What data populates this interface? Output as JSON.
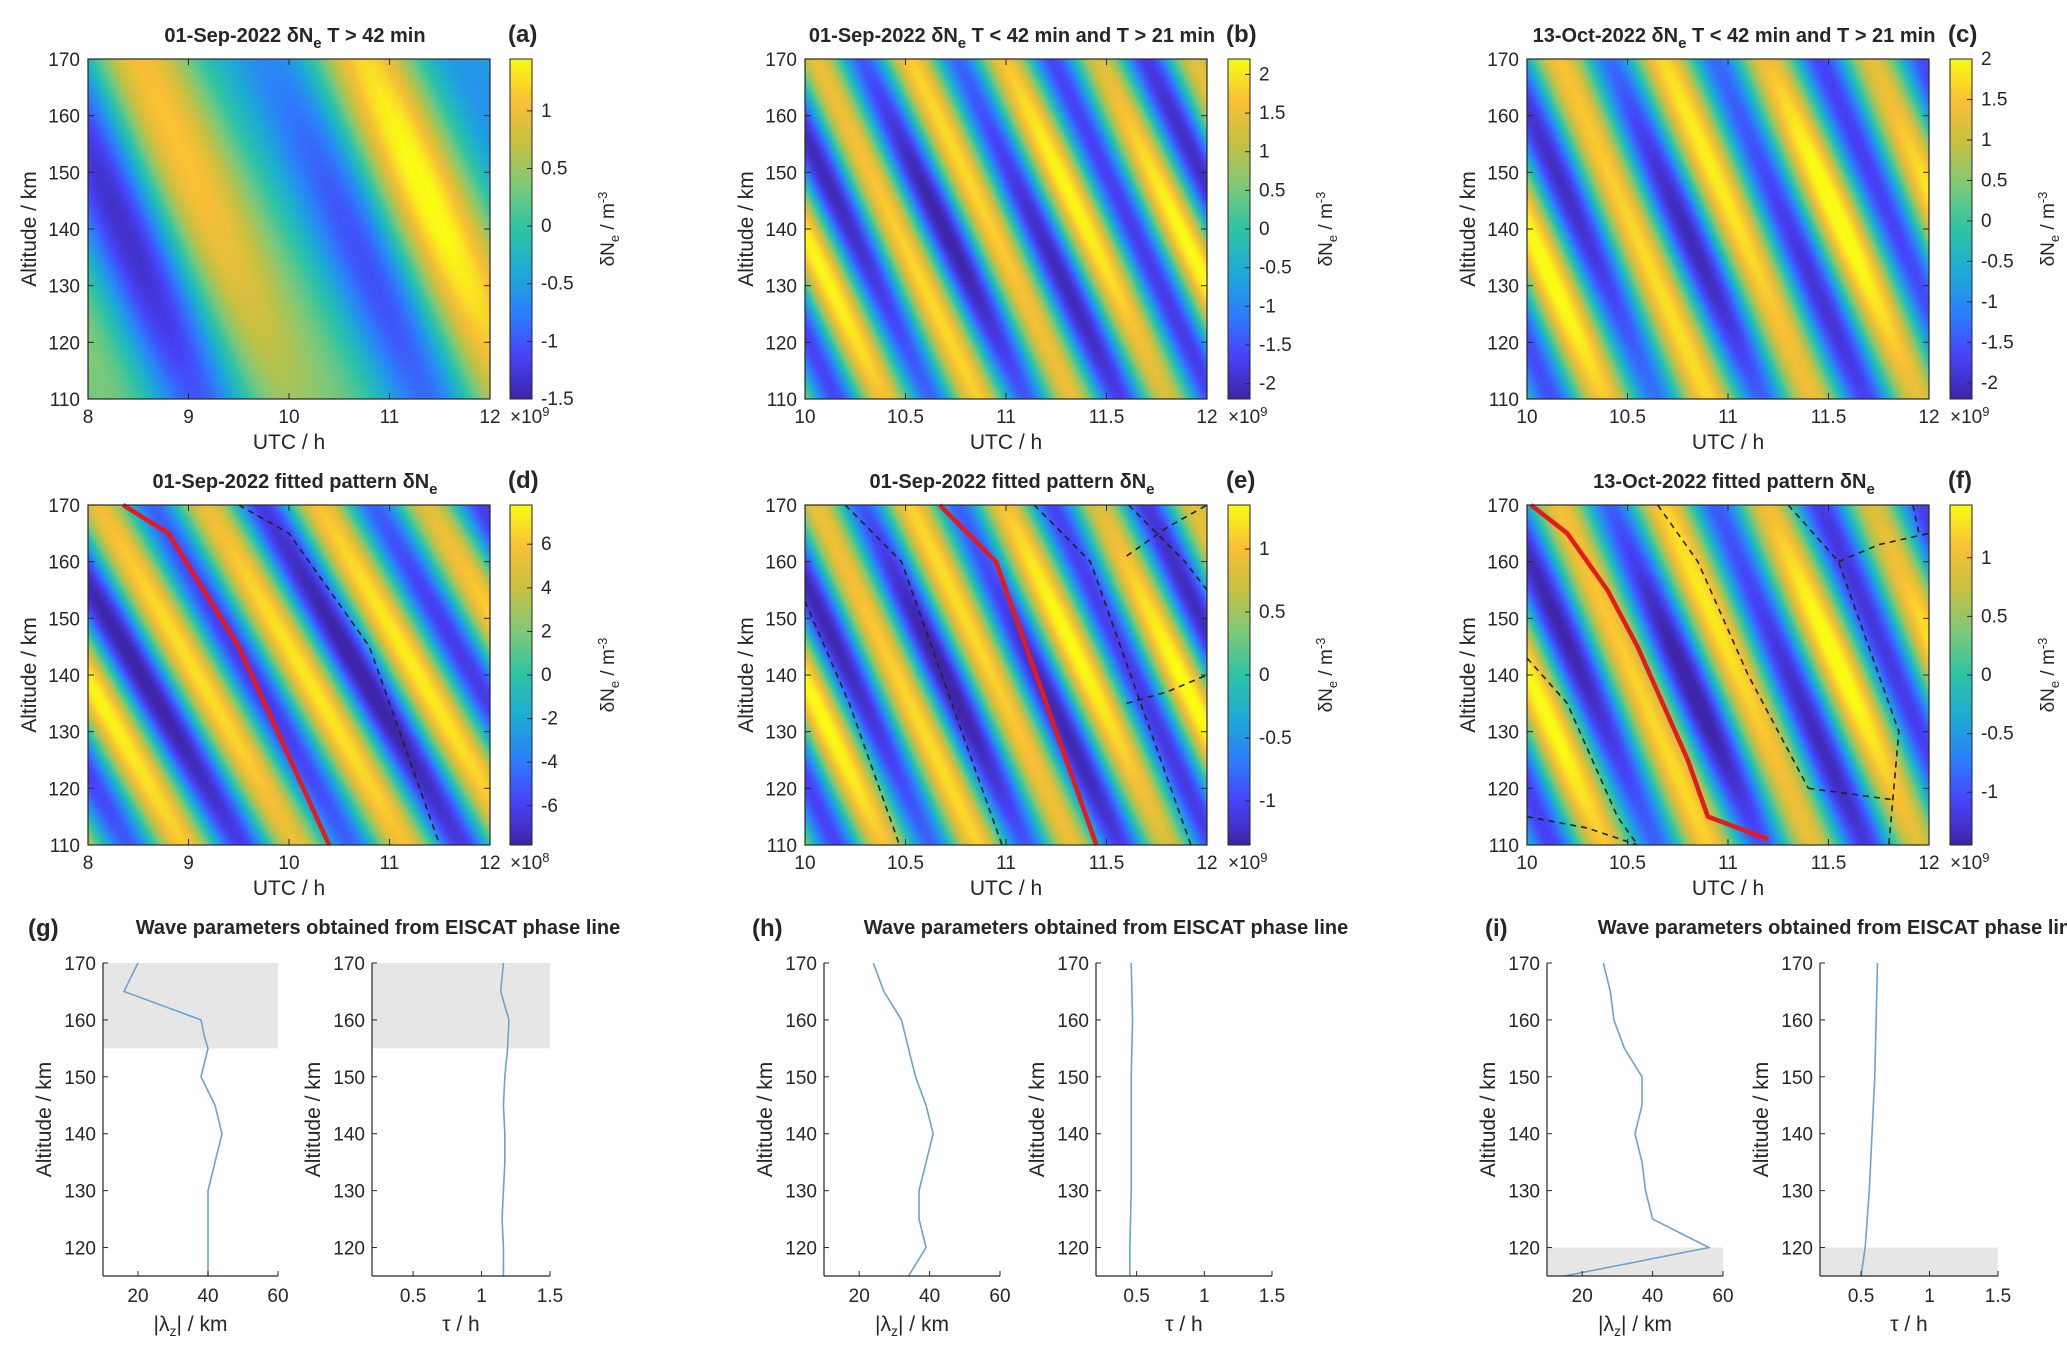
{
  "figure": {
    "colormap": [
      "#3e26a8",
      "#4743f8",
      "#2d7ffc",
      "#1cacd4",
      "#2ec4a5",
      "#7cc97a",
      "#c6c142",
      "#f9bf36",
      "#f9fb15"
    ],
    "line_colors": {
      "fitted_phase": "#e41a1c",
      "parallel_phase": "#222222",
      "profile": "#6aa3cf",
      "excluded_band": "#e6e6e6"
    }
  },
  "chart_data": [
    {
      "panel": "a",
      "label": "(a)",
      "type": "heatmap",
      "title_pre": "01-Sep-2022 δN",
      "title_sub": "e",
      "title_post": " T > 42 min",
      "xlabel": "UTC / h",
      "ylabel": "Altitude / km",
      "xlim": [
        8,
        12
      ],
      "ylim": [
        110,
        170
      ],
      "xticks": [
        "8",
        "9",
        "10",
        "11",
        "12"
      ],
      "yticks": [
        "110",
        "120",
        "130",
        "140",
        "150",
        "160",
        "170"
      ],
      "cbar_ticks": [
        "-1.5",
        "-1",
        "-0.5",
        "0",
        "0.5",
        "1"
      ],
      "cbar_range": [
        -1.5,
        1.45
      ],
      "cbar_unit": "×10",
      "cbar_exp": "9",
      "cbar_label": "δN",
      "cbar_label_sub": "e",
      "cbar_label_unit": " / m",
      "cbar_label_sup": "-3",
      "wave_period_h": 2.2,
      "phase_slope_h_per_km": -0.025,
      "amplitude": 1.3,
      "modulation": true
    },
    {
      "panel": "b",
      "label": "(b)",
      "type": "heatmap",
      "title_pre": "01-Sep-2022 δN",
      "title_sub": "e",
      "title_post": " T < 42 min and T > 21 min",
      "xlabel": "UTC / h",
      "ylabel": "Altitude / km",
      "xlim": [
        10,
        12
      ],
      "ylim": [
        110,
        170
      ],
      "xticks": [
        "10",
        "10.5",
        "11",
        "11.5",
        "12"
      ],
      "yticks": [
        "110",
        "120",
        "130",
        "140",
        "150",
        "160",
        "170"
      ],
      "cbar_ticks": [
        "-2",
        "-1.5",
        "-1",
        "-0.5",
        "0",
        "0.5",
        "1",
        "1.5",
        "2"
      ],
      "cbar_range": [
        -2.2,
        2.2
      ],
      "cbar_unit": "×10",
      "cbar_exp": "9",
      "cbar_label": "δN",
      "cbar_label_sub": "e",
      "cbar_label_unit": " / m",
      "cbar_label_sup": "-3",
      "wave_period_h": 0.47,
      "phase_slope_h_per_km": -0.0135,
      "amplitude": 2.0,
      "modulation": false
    },
    {
      "panel": "c",
      "label": "(c)",
      "type": "heatmap",
      "title_pre": "13-Oct-2022 δN",
      "title_sub": "e",
      "title_post": " T < 42 min and T > 21 min",
      "xlabel": "UTC / h",
      "ylabel": "Altitude / km",
      "xlim": [
        10,
        12
      ],
      "ylim": [
        110,
        170
      ],
      "xticks": [
        "10",
        "10.5",
        "11",
        "11.5",
        "12"
      ],
      "yticks": [
        "110",
        "120",
        "130",
        "140",
        "150",
        "160",
        "170"
      ],
      "cbar_ticks": [
        "-2",
        "-1.5",
        "-1",
        "-0.5",
        "0",
        "0.5",
        "1",
        "1.5",
        "2"
      ],
      "cbar_range": [
        -2.2,
        2.0
      ],
      "cbar_unit": "×10",
      "cbar_exp": "9",
      "cbar_label": "δN",
      "cbar_label_sub": "e",
      "cbar_label_unit": " / m",
      "cbar_label_sup": "-3",
      "wave_period_h": 0.52,
      "phase_slope_h_per_km": -0.0125,
      "amplitude": 1.9,
      "modulation": false
    },
    {
      "panel": "d",
      "label": "(d)",
      "type": "heatmap",
      "title_pre": "01-Sep-2022 fitted pattern δN",
      "title_sub": "e",
      "title_post": "",
      "xlabel": "UTC / h",
      "ylabel": "Altitude / km",
      "xlim": [
        8,
        12
      ],
      "ylim": [
        110,
        170
      ],
      "xticks": [
        "8",
        "9",
        "10",
        "11",
        "12"
      ],
      "yticks": [
        "110",
        "120",
        "130",
        "140",
        "150",
        "160",
        "170"
      ],
      "cbar_ticks": [
        "-6",
        "-4",
        "-2",
        "0",
        "2",
        "4",
        "6"
      ],
      "cbar_range": [
        -7.8,
        7.8
      ],
      "cbar_unit": "×10",
      "cbar_exp": "8",
      "cbar_label": "δN",
      "cbar_label_sub": "e",
      "cbar_label_unit": " / m",
      "cbar_label_sup": "-3",
      "wave_period_h": 1.1,
      "phase_slope_h_per_km": -0.033,
      "amplitude": 7.2,
      "modulation": false,
      "red_line": {
        "utc": [
          8.35,
          8.8,
          9.5,
          10.4
        ],
        "alt": [
          170,
          165,
          145,
          110
        ]
      },
      "dashed_lines": [
        {
          "utc": [
            9.5,
            10.0,
            10.8,
            11.5
          ],
          "alt": [
            170,
            165,
            145,
            110
          ]
        }
      ]
    },
    {
      "panel": "e",
      "label": "(e)",
      "type": "heatmap",
      "title_pre": "01-Sep-2022 fitted pattern δN",
      "title_sub": "e",
      "title_post": "",
      "xlabel": "UTC / h",
      "ylabel": "Altitude / km",
      "xlim": [
        10,
        12
      ],
      "ylim": [
        110,
        170
      ],
      "xticks": [
        "10",
        "10.5",
        "11",
        "11.5",
        "12"
      ],
      "yticks": [
        "110",
        "120",
        "130",
        "140",
        "150",
        "160",
        "170"
      ],
      "cbar_ticks": [
        "-1",
        "-0.5",
        "0",
        "0.5",
        "1"
      ],
      "cbar_range": [
        -1.35,
        1.35
      ],
      "cbar_unit": "×10",
      "cbar_exp": "9",
      "cbar_label": "δN",
      "cbar_label_sub": "e",
      "cbar_label_unit": " / m",
      "cbar_label_sup": "-3",
      "wave_period_h": 0.47,
      "phase_slope_h_per_km": -0.0135,
      "amplitude": 1.25,
      "modulation": false,
      "red_line": {
        "utc": [
          10.67,
          10.95,
          11.15,
          11.45
        ],
        "alt": [
          170,
          160,
          140,
          110
        ]
      },
      "dashed_lines": [
        {
          "utc": [
            10.0,
            10.22,
            10.47
          ],
          "alt": [
            153,
            135,
            110
          ]
        },
        {
          "utc": [
            10.2,
            10.48,
            10.68,
            10.98
          ],
          "alt": [
            170,
            160,
            140,
            110
          ]
        },
        {
          "utc": [
            11.14,
            11.42,
            11.62,
            11.92
          ],
          "alt": [
            170,
            160,
            140,
            110
          ]
        },
        {
          "utc": [
            11.61,
            11.89,
            12.0
          ],
          "alt": [
            170,
            160,
            155
          ]
        },
        {
          "utc": [
            11.6,
            11.8,
            12.0
          ],
          "alt": [
            161,
            166,
            170
          ]
        },
        {
          "utc": [
            11.6,
            11.8,
            12.0
          ],
          "alt": [
            135,
            137,
            140
          ]
        }
      ]
    },
    {
      "panel": "f",
      "label": "(f)",
      "type": "heatmap",
      "title_pre": "13-Oct-2022 fitted pattern δN",
      "title_sub": "e",
      "title_post": "",
      "xlabel": "UTC / h",
      "ylabel": "Altitude / km",
      "xlim": [
        10,
        12
      ],
      "ylim": [
        110,
        170
      ],
      "xticks": [
        "10",
        "10.5",
        "11",
        "11.5",
        "12"
      ],
      "yticks": [
        "110",
        "120",
        "130",
        "140",
        "150",
        "160",
        "170"
      ],
      "cbar_ticks": [
        "-1",
        "-0.5",
        "0",
        "0.5",
        "1"
      ],
      "cbar_range": [
        -1.45,
        1.45
      ],
      "cbar_unit": "×10",
      "cbar_exp": "9",
      "cbar_label": "δN",
      "cbar_label_sub": "e",
      "cbar_label_unit": " / m",
      "cbar_label_sup": "-3",
      "wave_period_h": 0.52,
      "phase_slope_h_per_km": -0.0125,
      "amplitude": 1.35,
      "modulation": false,
      "red_line": {
        "utc": [
          10.02,
          10.2,
          10.4,
          10.55,
          10.8,
          10.9,
          11.2
        ],
        "alt": [
          170,
          165,
          155,
          145,
          125,
          115,
          111
        ]
      },
      "dashed_lines": [
        {
          "utc": [
            10.0,
            10.2,
            10.45,
            10.55
          ],
          "alt": [
            143,
            135,
            115,
            110
          ]
        },
        {
          "utc": [
            10.0,
            10.3,
            10.55
          ],
          "alt": [
            115,
            113,
            110
          ]
        },
        {
          "utc": [
            10.65,
            10.85,
            11.1,
            11.4
          ],
          "alt": [
            170,
            160,
            140,
            120
          ]
        },
        {
          "utc": [
            11.4,
            11.82
          ],
          "alt": [
            120,
            118
          ]
        },
        {
          "utc": [
            11.3,
            11.55,
            11.85,
            11.8
          ],
          "alt": [
            170,
            160,
            130,
            110
          ]
        },
        {
          "utc": [
            11.55,
            11.75,
            12.0
          ],
          "alt": [
            160,
            163,
            165
          ]
        },
        {
          "utc": [
            11.92,
            11.95
          ],
          "alt": [
            170,
            165
          ]
        }
      ]
    },
    {
      "panel": "g",
      "label": "(g)",
      "type": "line",
      "title": "Wave parameters obtained from EISCAT phase line",
      "ylabel": "Altitude / km",
      "ylim": [
        115,
        170
      ],
      "yticks": [
        "120",
        "130",
        "140",
        "150",
        "160",
        "170"
      ],
      "subplots": [
        {
          "xlabel_pre": "|λ",
          "xlabel_sub": "z",
          "xlabel_post": "| / km",
          "xlim": [
            10,
            60
          ],
          "xticks": [
            "20",
            "40",
            "60"
          ],
          "shade": [
            155,
            170
          ],
          "alt": [
            170,
            165,
            160,
            157,
            155,
            150,
            145,
            140,
            135,
            130,
            125,
            120,
            115
          ],
          "x": [
            20,
            16,
            38,
            39,
            40,
            38,
            42,
            44,
            42,
            40,
            40,
            40,
            40
          ]
        },
        {
          "xlabel_pre": "τ",
          "xlabel_sub": "",
          "xlabel_post": " / h",
          "xlim": [
            0.2,
            1.5
          ],
          "xticks": [
            "0.5",
            "1",
            "1.5"
          ],
          "shade": [
            155,
            170
          ],
          "alt": [
            170,
            165,
            160,
            155,
            150,
            145,
            140,
            135,
            130,
            125,
            120,
            115
          ],
          "x": [
            1.16,
            1.14,
            1.2,
            1.19,
            1.17,
            1.16,
            1.17,
            1.17,
            1.16,
            1.15,
            1.16,
            1.16
          ]
        }
      ]
    },
    {
      "panel": "h",
      "label": "(h)",
      "type": "line",
      "title": "Wave parameters obtained from EISCAT phase line",
      "ylabel": "Altitude / km",
      "ylim": [
        115,
        170
      ],
      "yticks": [
        "120",
        "130",
        "140",
        "150",
        "160",
        "170"
      ],
      "subplots": [
        {
          "xlabel_pre": "|λ",
          "xlabel_sub": "z",
          "xlabel_post": "| / km",
          "xlim": [
            10,
            60
          ],
          "xticks": [
            "20",
            "40",
            "60"
          ],
          "shade": null,
          "alt": [
            170,
            165,
            160,
            155,
            150,
            145,
            140,
            135,
            130,
            125,
            120,
            115
          ],
          "x": [
            24,
            27,
            32,
            34,
            36,
            39,
            41,
            39,
            37,
            37,
            39,
            34
          ]
        },
        {
          "xlabel_pre": "τ",
          "xlabel_sub": "",
          "xlabel_post": " / h",
          "xlim": [
            0.2,
            1.5
          ],
          "xticks": [
            "0.5",
            "1",
            "1.5"
          ],
          "shade": null,
          "alt": [
            170,
            160,
            150,
            140,
            130,
            120,
            115
          ],
          "x": [
            0.46,
            0.47,
            0.46,
            0.46,
            0.46,
            0.45,
            0.45
          ]
        }
      ]
    },
    {
      "panel": "i",
      "label": "(i)",
      "type": "line",
      "title": "Wave parameters obtained from EISCAT phase line",
      "ylabel": "Altitude / km",
      "ylim": [
        115,
        170
      ],
      "yticks": [
        "120",
        "130",
        "140",
        "150",
        "160",
        "170"
      ],
      "subplots": [
        {
          "xlabel_pre": "|λ",
          "xlabel_sub": "z",
          "xlabel_post": "| / km",
          "xlim": [
            10,
            60
          ],
          "xticks": [
            "20",
            "40",
            "60"
          ],
          "shade": [
            115,
            120
          ],
          "alt": [
            170,
            165,
            160,
            155,
            150,
            145,
            140,
            135,
            130,
            125,
            120,
            115
          ],
          "x": [
            26,
            28,
            29,
            32,
            37,
            37,
            35,
            37,
            38,
            40,
            56,
            15
          ]
        },
        {
          "xlabel_pre": "τ",
          "xlabel_sub": "",
          "xlabel_post": " / h",
          "xlim": [
            0.2,
            1.5
          ],
          "xticks": [
            "0.5",
            "1",
            "1.5"
          ],
          "shade": [
            115,
            120
          ],
          "alt": [
            170,
            160,
            150,
            140,
            130,
            120,
            115
          ],
          "x": [
            0.62,
            0.61,
            0.6,
            0.58,
            0.56,
            0.53,
            0.5
          ]
        }
      ]
    }
  ]
}
